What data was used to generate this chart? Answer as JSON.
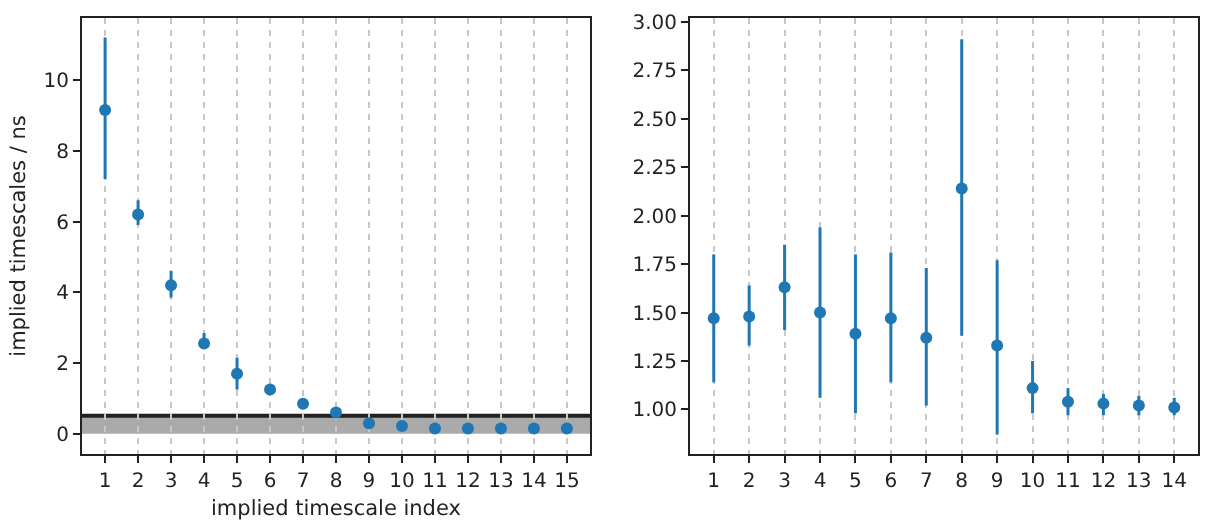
{
  "chart_data": [
    {
      "type": "scatter",
      "xlabel": "implied timescale index",
      "ylabel": "implied timescales / ns",
      "x": [
        1,
        2,
        3,
        4,
        5,
        6,
        7,
        8,
        9,
        10,
        11,
        12,
        13,
        14,
        15
      ],
      "series": [
        {
          "color": "#1f77b4",
          "values": [
            9.15,
            6.2,
            4.2,
            2.55,
            1.7,
            1.25,
            0.85,
            0.6,
            0.3,
            0.22,
            0.15,
            0.15,
            0.15,
            0.15,
            0.15
          ],
          "errors": [
            [
              7.2,
              11.2
            ],
            [
              5.9,
              6.6
            ],
            [
              3.85,
              4.6
            ],
            [
              2.4,
              2.85
            ],
            [
              1.25,
              2.15
            ],
            null,
            null,
            null,
            null,
            null,
            null,
            null,
            null,
            null,
            null
          ]
        }
      ],
      "xlim": [
        0.3,
        15.7
      ],
      "xticks": [
        1,
        2,
        3,
        4,
        5,
        6,
        7,
        8,
        9,
        10,
        11,
        12,
        13,
        14,
        15
      ],
      "ylim": [
        -0.57,
        11.75
      ],
      "yticks": [
        0,
        2,
        4,
        6,
        8,
        10
      ],
      "marker": "circle",
      "grid": "x",
      "bands": [
        {
          "axis": "y",
          "from": 0,
          "to": 0.51,
          "color": "#aaaaaa"
        }
      ],
      "ref_lines": [
        {
          "axis": "y",
          "value": 0.51,
          "color": "#222222",
          "line_style": "solid"
        }
      ]
    },
    {
      "type": "scatter",
      "x": [
        1,
        2,
        3,
        4,
        5,
        6,
        7,
        8,
        9,
        10,
        11,
        12,
        13,
        14
      ],
      "series": [
        {
          "color": "#1f77b4",
          "values": [
            1.47,
            1.48,
            1.63,
            1.5,
            1.39,
            1.47,
            1.37,
            2.14,
            1.33,
            1.11,
            1.04,
            1.03,
            1.02,
            1.01
          ],
          "errors": [
            [
              1.14,
              1.8
            ],
            [
              1.33,
              1.64
            ],
            [
              1.41,
              1.85
            ],
            [
              1.06,
              1.94
            ],
            [
              0.98,
              1.8
            ],
            [
              1.14,
              1.81
            ],
            [
              1.02,
              1.73
            ],
            [
              1.38,
              2.91
            ],
            [
              0.87,
              1.77
            ],
            [
              0.98,
              1.25
            ],
            [
              0.97,
              1.11
            ],
            [
              0.97,
              1.08
            ],
            [
              0.97,
              1.07
            ],
            [
              0.97,
              1.06
            ]
          ]
        }
      ],
      "xlim": [
        0.33,
        14.67
      ],
      "xticks": [
        1,
        2,
        3,
        4,
        5,
        6,
        7,
        8,
        9,
        10,
        11,
        12,
        13,
        14
      ],
      "ylim": [
        0.77,
        3.02
      ],
      "yticks": [
        {
          "value": 1,
          "label": "1.00"
        },
        1.25,
        {
          "value": 1.5,
          "label": "1.50"
        },
        1.75,
        {
          "value": 2,
          "label": "2.00"
        },
        2.25,
        {
          "value": 2.5,
          "label": "2.50"
        },
        2.75,
        {
          "value": 3,
          "label": "3.00"
        }
      ],
      "marker": "circle",
      "grid": "x"
    }
  ]
}
